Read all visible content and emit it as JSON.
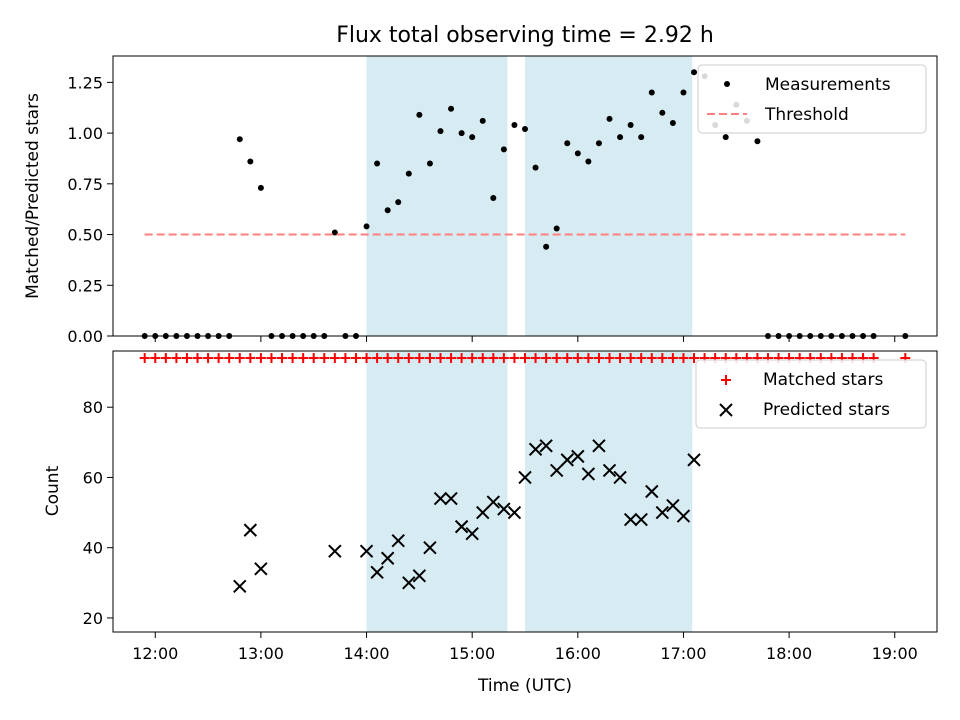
{
  "chart_data": [
    {
      "type": "scatter",
      "title": "Flux total observing time = 2.92 h",
      "xlabel": "",
      "ylabel": "Matched/Predicted stars",
      "xlim": [
        "11:36",
        "19:24"
      ],
      "ylim": [
        0,
        1.38
      ],
      "yticks": [
        0.0,
        0.25,
        0.5,
        0.75,
        1.0,
        1.25
      ],
      "ytick_labels": [
        "0.00",
        "0.25",
        "0.50",
        "0.75",
        "1.00",
        "1.25"
      ],
      "legend_position": "top-right",
      "shaded_spans": [
        {
          "start": "14:00",
          "end": "15:20"
        },
        {
          "start": "15:30",
          "end": "17:05"
        }
      ],
      "series": [
        {
          "name": "Measurements",
          "marker": "dot",
          "color": "#000000",
          "x": [
            "11:54",
            "12:00",
            "12:06",
            "12:12",
            "12:18",
            "12:24",
            "12:30",
            "12:36",
            "12:42",
            "12:48",
            "12:54",
            "13:00",
            "13:06",
            "13:12",
            "13:18",
            "13:24",
            "13:30",
            "13:36",
            "13:42",
            "13:48",
            "13:54",
            "14:00",
            "14:06",
            "14:12",
            "14:18",
            "14:24",
            "14:30",
            "14:36",
            "14:42",
            "14:48",
            "14:54",
            "15:00",
            "15:06",
            "15:12",
            "15:18",
            "15:24",
            "15:30",
            "15:36",
            "15:42",
            "15:48",
            "15:54",
            "16:00",
            "16:06",
            "16:12",
            "16:18",
            "16:24",
            "16:30",
            "16:36",
            "16:42",
            "16:48",
            "16:54",
            "17:00",
            "17:06",
            "17:12",
            "17:18",
            "17:24",
            "17:30",
            "17:36",
            "17:42",
            "17:48",
            "17:54",
            "18:00",
            "18:06",
            "18:12",
            "18:18",
            "18:24",
            "18:30",
            "18:36",
            "18:42",
            "18:48",
            "19:06"
          ],
          "y": [
            0,
            0,
            0,
            0,
            0,
            0,
            0,
            0,
            0,
            0.97,
            0.86,
            0.73,
            0,
            0,
            0,
            0,
            0,
            0,
            0.51,
            0,
            0,
            0.54,
            0.85,
            0.62,
            0.66,
            0.8,
            1.09,
            0.85,
            1.01,
            1.12,
            1.0,
            0.98,
            1.06,
            0.68,
            0.92,
            1.04,
            1.02,
            0.83,
            0.44,
            0.53,
            0.95,
            0.9,
            0.86,
            0.95,
            1.07,
            0.98,
            1.04,
            0.98,
            1.2,
            1.1,
            1.05,
            1.2,
            1.3,
            1.28,
            1.04,
            0.98,
            1.14,
            1.06,
            0.96,
            0,
            0,
            0,
            0,
            0,
            0,
            0,
            0,
            0,
            0,
            0,
            0
          ]
        },
        {
          "name": "Threshold",
          "line_style": "dashed",
          "color": "#ff7f7f",
          "x": [
            "11:54",
            "19:06"
          ],
          "y": [
            0.5,
            0.5
          ]
        }
      ]
    },
    {
      "type": "scatter",
      "title": "",
      "xlabel": "Time (UTC)",
      "ylabel": "Count",
      "xlim": [
        "11:36",
        "19:24"
      ],
      "ylim": [
        16,
        96
      ],
      "yticks": [
        20,
        40,
        60,
        80
      ],
      "xticks": [
        "12:00",
        "13:00",
        "14:00",
        "15:00",
        "16:00",
        "17:00",
        "18:00",
        "19:00"
      ],
      "legend_position": "top-right",
      "shaded_spans": [
        {
          "start": "14:00",
          "end": "15:20"
        },
        {
          "start": "15:30",
          "end": "17:05"
        }
      ],
      "series": [
        {
          "name": "Matched stars",
          "marker": "plus",
          "color": "#ff0000",
          "x": [
            "11:54",
            "12:00",
            "12:06",
            "12:12",
            "12:18",
            "12:24",
            "12:30",
            "12:36",
            "12:42",
            "12:48",
            "12:54",
            "13:00",
            "13:06",
            "13:12",
            "13:18",
            "13:24",
            "13:30",
            "13:36",
            "13:42",
            "13:48",
            "13:54",
            "14:00",
            "14:06",
            "14:12",
            "14:18",
            "14:24",
            "14:30",
            "14:36",
            "14:42",
            "14:48",
            "14:54",
            "15:00",
            "15:06",
            "15:12",
            "15:18",
            "15:24",
            "15:30",
            "15:36",
            "15:42",
            "15:48",
            "15:54",
            "16:00",
            "16:06",
            "16:12",
            "16:18",
            "16:24",
            "16:30",
            "16:36",
            "16:42",
            "16:48",
            "16:54",
            "17:00",
            "17:06",
            "17:12",
            "17:18",
            "17:24",
            "17:30",
            "17:36",
            "17:42",
            "17:48",
            "17:54",
            "18:00",
            "18:06",
            "18:12",
            "18:18",
            "18:24",
            "18:30",
            "18:36",
            "18:42",
            "18:48",
            "19:06"
          ],
          "y": [
            94,
            94,
            94,
            94,
            94,
            94,
            94,
            94,
            94,
            94,
            94,
            94,
            94,
            94,
            94,
            94,
            94,
            94,
            94,
            94,
            94,
            94,
            94,
            94,
            94,
            94,
            94,
            94,
            94,
            94,
            94,
            94,
            94,
            94,
            94,
            94,
            94,
            94,
            94,
            94,
            94,
            94,
            94,
            94,
            94,
            94,
            94,
            94,
            94,
            94,
            94,
            94,
            94,
            94,
            94,
            94,
            94,
            94,
            94,
            94,
            94,
            94,
            94,
            94,
            94,
            94,
            94,
            94,
            94,
            94,
            94
          ]
        },
        {
          "name": "Predicted stars",
          "marker": "x",
          "color": "#000000",
          "x": [
            "12:48",
            "12:54",
            "13:00",
            "13:42",
            "14:00",
            "14:06",
            "14:12",
            "14:18",
            "14:24",
            "14:30",
            "14:36",
            "14:42",
            "14:48",
            "14:54",
            "15:00",
            "15:06",
            "15:12",
            "15:18",
            "15:24",
            "15:30",
            "15:36",
            "15:42",
            "15:48",
            "15:54",
            "16:00",
            "16:06",
            "16:12",
            "16:18",
            "16:24",
            "16:30",
            "16:36",
            "16:42",
            "16:48",
            "16:54",
            "17:00",
            "17:06"
          ],
          "y": [
            29,
            45,
            34,
            39,
            39,
            33,
            37,
            42,
            30,
            32,
            40,
            54,
            54,
            46,
            44,
            50,
            53,
            51,
            50,
            60,
            68,
            69,
            62,
            65,
            66,
            61,
            69,
            62,
            60,
            48,
            48,
            56,
            50,
            52,
            49,
            65
          ]
        }
      ]
    }
  ]
}
